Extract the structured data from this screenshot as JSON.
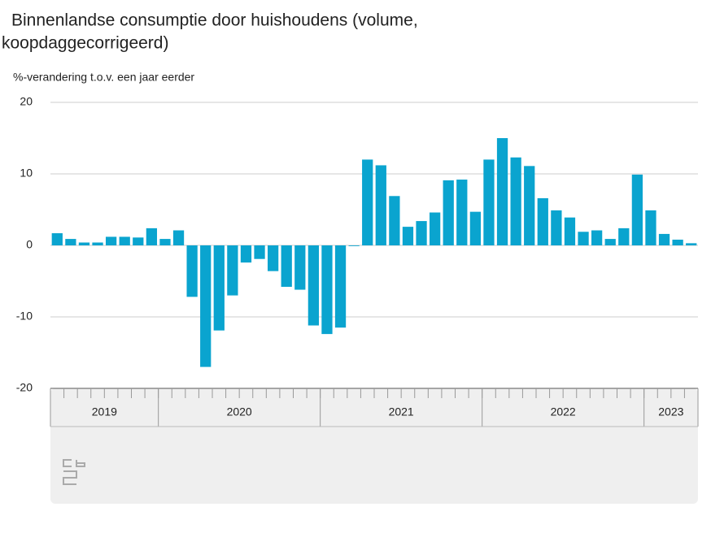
{
  "chart_data": {
    "type": "bar",
    "title": "Binnenlandse consumptie door huishoudens (volume,",
    "title_line2": "koopdaggecorrigeerd)",
    "y_axis_label": "%-verandering t.o.v. een jaar eerder",
    "color": "#0aa4cf",
    "grid": true,
    "ylim": [
      -20,
      20
    ],
    "yticks": [
      -20,
      -10,
      0,
      10,
      20
    ],
    "categories": [
      null,
      null,
      null,
      null,
      null,
      null,
      null,
      null,
      null,
      null,
      null,
      null,
      null,
      null,
      null,
      null,
      null,
      null,
      null,
      null,
      null,
      null,
      null,
      null,
      null,
      null,
      null,
      null,
      null,
      null,
      null,
      null,
      null,
      null,
      null,
      null,
      null,
      null,
      null,
      null,
      null,
      null,
      null,
      null,
      null,
      null,
      null,
      null
    ],
    "values": [
      1.7,
      0.9,
      0.4,
      0.4,
      1.2,
      1.2,
      1.1,
      2.4,
      0.9,
      2.1,
      -7.2,
      -17.0,
      -11.9,
      -7.0,
      -2.4,
      -1.9,
      -3.6,
      -5.8,
      -6.2,
      -11.2,
      -12.4,
      -11.5,
      -0.1,
      12.0,
      11.2,
      6.9,
      2.6,
      3.4,
      4.6,
      9.1,
      9.2,
      4.7,
      12.0,
      15.0,
      12.3,
      11.1,
      6.6,
      4.9,
      3.9,
      1.9,
      2.1,
      0.9,
      2.4,
      9.9,
      4.9,
      1.6,
      0.8,
      0.3
    ],
    "x_groups": [
      {
        "label": "2019",
        "count": 8
      },
      {
        "label": "2020",
        "count": 12
      },
      {
        "label": "2021",
        "count": 12
      },
      {
        "label": "2022",
        "count": 12
      },
      {
        "label": "2023",
        "count": 4
      }
    ]
  }
}
